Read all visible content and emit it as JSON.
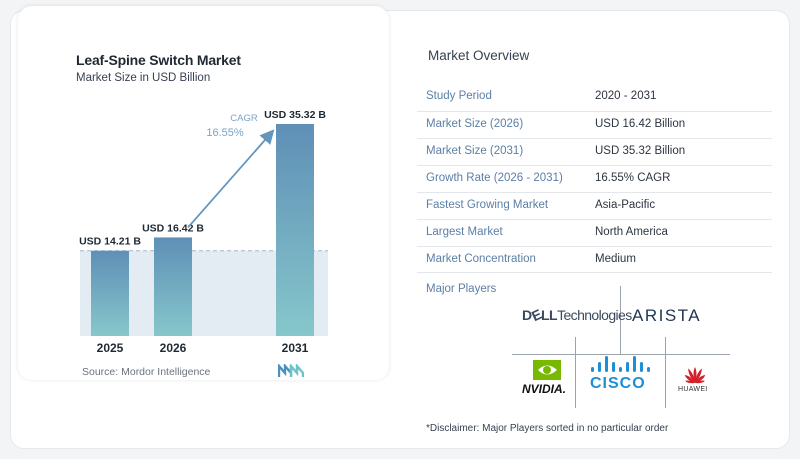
{
  "chart_data": {
    "type": "bar",
    "title": "Leaf-Spine Switch Market",
    "subtitle": "Market Size in USD Billion",
    "categories": [
      "2025",
      "2026",
      "2031"
    ],
    "values": [
      14.21,
      16.42,
      35.32
    ],
    "data_labels": [
      "USD 14.21 B",
      "USD 16.42 B",
      "USD 35.32 B"
    ],
    "cagr_label": "CAGR",
    "cagr_value": "16.55%",
    "ylim": [
      0,
      40
    ],
    "grid": false,
    "colors": {
      "bar_top": "#5f8fb6",
      "bar_bottom": "#86c7cb",
      "shade": "#e3ebf3",
      "arrow": "#6495bd",
      "cagr_text": "#7aa4c6"
    }
  },
  "source": "Source: Mordor Intelligence",
  "overview": {
    "title": "Market Overview",
    "rows": [
      {
        "label": "Study Period",
        "value": "2020 - 2031"
      },
      {
        "label": "Market Size (2026)",
        "value": "USD 16.42 Billion"
      },
      {
        "label": "Market Size (2031)",
        "value": "USD 35.32 Billion"
      },
      {
        "label": "Growth Rate (2026 - 2031)",
        "value": "16.55% CAGR"
      },
      {
        "label": "Fastest Growing Market",
        "value": "Asia-Pacific"
      },
      {
        "label": "Largest Market",
        "value": "North America"
      },
      {
        "label": "Market Concentration",
        "value": "Medium"
      }
    ]
  },
  "major_players": {
    "title": "Major Players",
    "logos": {
      "dell_a": "D",
      "dell_e": "E",
      "dell_ll": "LL",
      "dell_tech": "Technologies",
      "arista": "ARISTA",
      "nvidia": "NVIDIA.",
      "cisco": "CISCO",
      "huawei": "HUAWEI"
    }
  },
  "disclaimer": "*Disclaimer: Major Players sorted in no particular order"
}
